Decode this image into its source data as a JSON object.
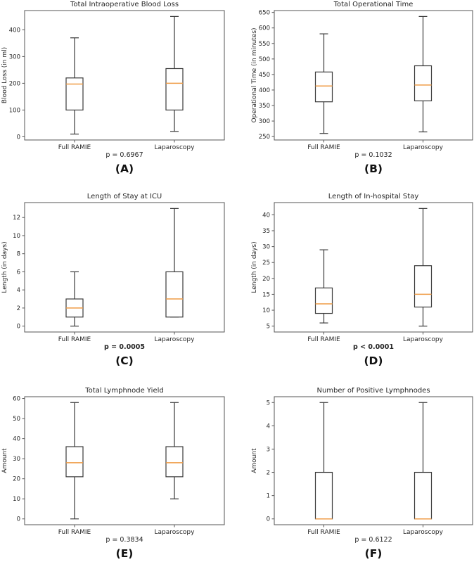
{
  "figure": {
    "description": "Six box plot panels comparing Full RAMIE vs Laparoscopy surgical outcomes",
    "categories": [
      "Full RAMIE",
      "Laparoscopy"
    ]
  },
  "colors": {
    "median": "#ef9b45",
    "box_edge": "#3a3a3a",
    "spine": "#555555",
    "text": "#262626",
    "caption": "#111111",
    "background": "#ffffff"
  },
  "chart_data": [
    {
      "type": "boxplot",
      "caption": "(A)",
      "title": "Total Intraoperative Blood Loss",
      "ylabel": "Blood Loss (in ml)",
      "p_label": "p = 0.6967",
      "p_bold": false,
      "categories": [
        "Full RAMIE",
        "Laparoscopy"
      ],
      "ylim": [
        -12,
        472
      ],
      "yticks": [
        0,
        100,
        200,
        300,
        400
      ],
      "grid": false,
      "boxes": [
        {
          "category": "Full RAMIE",
          "whisker_low": 10,
          "q1": 100,
          "median": 197,
          "q3": 220,
          "whisker_high": 370
        },
        {
          "category": "Laparoscopy",
          "whisker_low": 20,
          "q1": 100,
          "median": 200,
          "q3": 255,
          "whisker_high": 450
        }
      ]
    },
    {
      "type": "boxplot",
      "caption": "(B)",
      "title": "Total Operational Time",
      "ylabel": "Operational Time (in minutes)",
      "p_label": "p = 0.1032",
      "p_bold": false,
      "categories": [
        "Full RAMIE",
        "Laparoscopy"
      ],
      "ylim": [
        239,
        656
      ],
      "yticks": [
        250,
        300,
        350,
        400,
        450,
        500,
        550,
        600,
        650
      ],
      "grid": false,
      "boxes": [
        {
          "category": "Full RAMIE",
          "whisker_low": 260,
          "q1": 362,
          "median": 413,
          "q3": 458,
          "whisker_high": 581
        },
        {
          "category": "Laparoscopy",
          "whisker_low": 265,
          "q1": 365,
          "median": 416,
          "q3": 478,
          "whisker_high": 637
        }
      ]
    },
    {
      "type": "boxplot",
      "caption": "(C)",
      "title": "Length of Stay at ICU",
      "ylabel": "Length (in days)",
      "p_label": "p = 0.0005",
      "p_bold": true,
      "categories": [
        "Full RAMIE",
        "Laparoscopy"
      ],
      "ylim": [
        -0.65,
        13.65
      ],
      "yticks": [
        0,
        2,
        4,
        6,
        8,
        10,
        12
      ],
      "grid": false,
      "boxes": [
        {
          "category": "Full RAMIE",
          "whisker_low": 0,
          "q1": 1,
          "median": 2,
          "q3": 3,
          "whisker_high": 6
        },
        {
          "category": "Laparoscopy",
          "whisker_low": 1,
          "q1": 1,
          "median": 3,
          "q3": 6,
          "whisker_high": 13
        }
      ]
    },
    {
      "type": "boxplot",
      "caption": "(D)",
      "title": "Length of In-hospital Stay",
      "ylabel": "Length (in days)",
      "p_label": "p < 0.0001",
      "p_bold": true,
      "categories": [
        "Full RAMIE",
        "Laparoscopy"
      ],
      "ylim": [
        3.15,
        43.85
      ],
      "yticks": [
        5,
        10,
        15,
        20,
        25,
        30,
        35,
        40
      ],
      "grid": false,
      "boxes": [
        {
          "category": "Full RAMIE",
          "whisker_low": 6,
          "q1": 9,
          "median": 12,
          "q3": 17,
          "whisker_high": 29
        },
        {
          "category": "Laparoscopy",
          "whisker_low": 5,
          "q1": 11,
          "median": 15,
          "q3": 24,
          "whisker_high": 42
        }
      ]
    },
    {
      "type": "boxplot",
      "caption": "(E)",
      "title": "Total Lymphnode Yield",
      "ylabel": "Amount",
      "p_label": "p = 0.3834",
      "p_bold": false,
      "categories": [
        "Full RAMIE",
        "Laparoscopy"
      ],
      "ylim": [
        -2.9,
        60.9
      ],
      "yticks": [
        0,
        10,
        20,
        30,
        40,
        50,
        60
      ],
      "grid": false,
      "boxes": [
        {
          "category": "Full RAMIE",
          "whisker_low": 0,
          "q1": 21,
          "median": 28,
          "q3": 36,
          "whisker_high": 58
        },
        {
          "category": "Laparoscopy",
          "whisker_low": 10,
          "q1": 21,
          "median": 28,
          "q3": 36,
          "whisker_high": 58
        }
      ]
    },
    {
      "type": "boxplot",
      "caption": "(F)",
      "title": "Number of Positive Lymphnodes",
      "ylabel": "Amount",
      "p_label": "p = 0.6122",
      "p_bold": false,
      "categories": [
        "Full RAMIE",
        "Laparoscopy"
      ],
      "ylim": [
        -0.25,
        5.25
      ],
      "yticks": [
        0,
        1,
        2,
        3,
        4,
        5
      ],
      "grid": false,
      "boxes": [
        {
          "category": "Full RAMIE",
          "whisker_low": 0,
          "q1": 0,
          "median": 0,
          "q3": 2,
          "whisker_high": 5
        },
        {
          "category": "Laparoscopy",
          "whisker_low": 0,
          "q1": 0,
          "median": 0,
          "q3": 2,
          "whisker_high": 5
        }
      ]
    }
  ]
}
